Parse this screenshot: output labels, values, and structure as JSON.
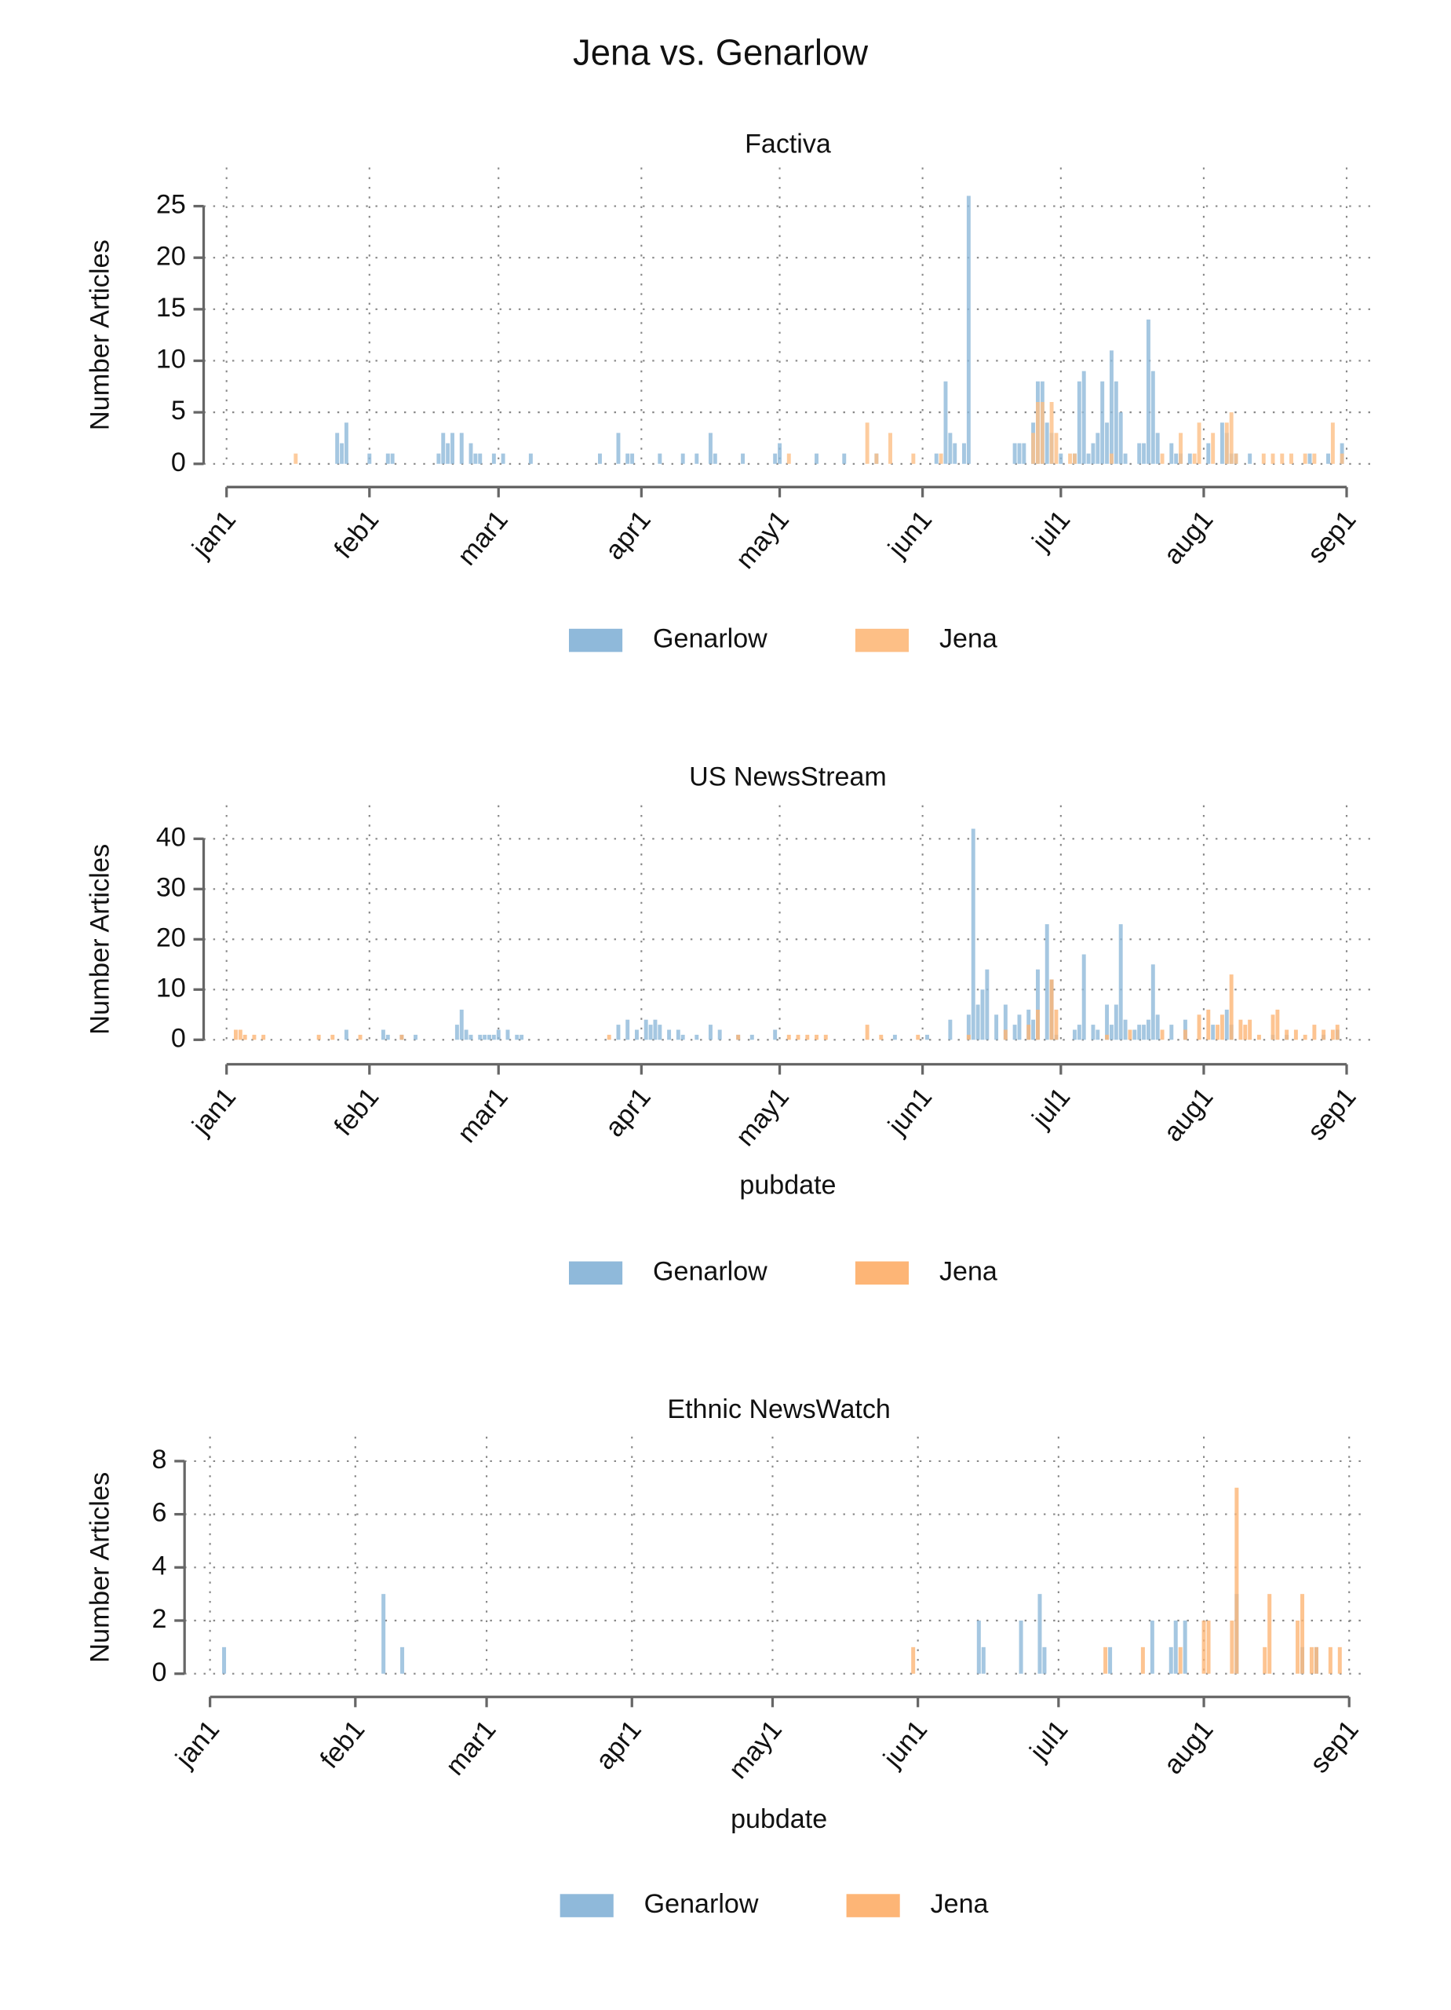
{
  "title": "Jena vs. Genarlow",
  "chart_data": [
    {
      "type": "bar",
      "title": "Factiva",
      "ylabel": "Number Articles",
      "xlim": [
        0,
        243
      ],
      "xticks": [
        {
          "value": 0,
          "label": "jan1"
        },
        {
          "value": 31,
          "label": "feb1"
        },
        {
          "value": 59,
          "label": "mar1"
        },
        {
          "value": 90,
          "label": "apr1"
        },
        {
          "value": 120,
          "label": "may1"
        },
        {
          "value": 151,
          "label": "jun1"
        },
        {
          "value": 181,
          "label": "jul1"
        },
        {
          "value": 212,
          "label": "aug1"
        },
        {
          "value": 243,
          "label": "sep1"
        }
      ],
      "ylim": [
        0,
        25
      ],
      "yticks": [
        0,
        5,
        10,
        15,
        20,
        25
      ],
      "grid": true,
      "series": [
        {
          "name": "Genarlow",
          "color": "#8fb9da",
          "x": [
            24,
            25,
            26,
            31,
            35,
            36,
            46,
            47,
            48,
            49,
            51,
            53,
            54,
            55,
            58,
            60,
            66,
            81,
            85,
            87,
            88,
            94,
            99,
            102,
            105,
            106,
            112,
            119,
            120,
            128,
            134,
            141,
            154,
            156,
            157,
            158,
            160,
            161,
            171,
            172,
            173,
            175,
            176,
            177,
            178,
            179,
            181,
            184,
            185,
            186,
            187,
            188,
            189,
            190,
            191,
            192,
            193,
            194,
            195,
            198,
            199,
            200,
            201,
            202,
            205,
            206,
            207,
            209,
            213,
            216,
            217,
            218,
            219,
            222,
            235,
            239,
            242
          ],
          "values": [
            3,
            2,
            4,
            1,
            1,
            1,
            1,
            3,
            2,
            3,
            3,
            2,
            1,
            1,
            1,
            1,
            1,
            1,
            3,
            1,
            1,
            1,
            1,
            1,
            3,
            1,
            1,
            1,
            2,
            1,
            1,
            1,
            1,
            8,
            3,
            2,
            2,
            26,
            2,
            2,
            2,
            4,
            8,
            8,
            4,
            3,
            1,
            1,
            8,
            9,
            1,
            2,
            3,
            8,
            4,
            11,
            8,
            5,
            1,
            2,
            2,
            14,
            9,
            3,
            2,
            1,
            1,
            1,
            2,
            4,
            3,
            1,
            1,
            1,
            1,
            1,
            2
          ]
        },
        {
          "name": "Jena",
          "color": "#fdbf86",
          "x": [
            15,
            122,
            139,
            141,
            144,
            149,
            155,
            175,
            176,
            177,
            179,
            180,
            183,
            184,
            192,
            203,
            207,
            210,
            211,
            214,
            217,
            218,
            219,
            225,
            227,
            229,
            231,
            234,
            236,
            240,
            242
          ],
          "values": [
            1,
            1,
            4,
            1,
            3,
            1,
            1,
            3,
            6,
            6,
            6,
            3,
            1,
            1,
            1,
            1,
            3,
            1,
            4,
            3,
            4,
            5,
            1,
            1,
            1,
            1,
            1,
            1,
            1,
            4,
            1
          ]
        }
      ]
    },
    {
      "type": "bar",
      "title": "US NewsStream",
      "ylabel": "Number Articles",
      "xlabel": "pubdate",
      "xlim": [
        0,
        243
      ],
      "xticks": [
        {
          "value": 0,
          "label": "jan1"
        },
        {
          "value": 31,
          "label": "feb1"
        },
        {
          "value": 59,
          "label": "mar1"
        },
        {
          "value": 90,
          "label": "apr1"
        },
        {
          "value": 120,
          "label": "may1"
        },
        {
          "value": 151,
          "label": "jun1"
        },
        {
          "value": 181,
          "label": "jul1"
        },
        {
          "value": 212,
          "label": "aug1"
        },
        {
          "value": 243,
          "label": "sep1"
        }
      ],
      "ylim": [
        0,
        40
      ],
      "yticks": [
        0,
        10,
        20,
        30,
        40
      ],
      "grid": true,
      "series": [
        {
          "name": "Genarlow",
          "color": "#8fb9da",
          "x": [
            26,
            34,
            35,
            38,
            41,
            50,
            51,
            52,
            53,
            55,
            56,
            57,
            58,
            59,
            61,
            63,
            64,
            85,
            87,
            89,
            91,
            92,
            93,
            94,
            96,
            98,
            99,
            102,
            105,
            107,
            111,
            114,
            119,
            145,
            152,
            157,
            161,
            162,
            163,
            164,
            165,
            167,
            169,
            171,
            172,
            174,
            175,
            176,
            178,
            179,
            180,
            184,
            185,
            186,
            188,
            189,
            191,
            192,
            193,
            194,
            195,
            197,
            198,
            199,
            200,
            201,
            202,
            205,
            208,
            214,
            217,
            218,
            227,
            230,
            238,
            241
          ],
          "values": [
            2,
            2,
            1,
            1,
            1,
            3,
            6,
            2,
            1,
            1,
            1,
            1,
            1,
            2,
            2,
            1,
            1,
            3,
            4,
            2,
            4,
            3,
            4,
            3,
            2,
            2,
            1,
            1,
            3,
            2,
            1,
            1,
            2,
            1,
            1,
            4,
            5,
            42,
            7,
            10,
            14,
            5,
            7,
            3,
            5,
            6,
            4,
            14,
            23,
            12,
            1,
            2,
            3,
            17,
            3,
            2,
            7,
            3,
            7,
            23,
            4,
            2,
            3,
            3,
            4,
            15,
            5,
            3,
            4,
            3,
            6,
            3,
            1,
            1,
            1,
            2
          ]
        },
        {
          "name": "Jena",
          "color": "#fdb576",
          "x": [
            2,
            3,
            4,
            6,
            8,
            20,
            23,
            29,
            38,
            83,
            111,
            122,
            124,
            126,
            128,
            130,
            139,
            142,
            150,
            161,
            169,
            174,
            176,
            179,
            180,
            191,
            196,
            203,
            208,
            211,
            213,
            215,
            216,
            218,
            220,
            221,
            222,
            224,
            227,
            228,
            230,
            232,
            234,
            236,
            238,
            240,
            241
          ],
          "values": [
            2,
            2,
            1,
            1,
            1,
            1,
            1,
            1,
            1,
            1,
            1,
            1,
            1,
            1,
            1,
            1,
            3,
            1,
            1,
            1,
            2,
            3,
            6,
            12,
            6,
            1,
            2,
            2,
            2,
            5,
            6,
            3,
            5,
            13,
            4,
            3,
            4,
            1,
            5,
            6,
            2,
            2,
            1,
            3,
            2,
            2,
            3
          ]
        }
      ]
    },
    {
      "type": "bar",
      "title": "Ethnic NewsWatch",
      "ylabel": "Number Articles",
      "xlabel": "pubdate",
      "xlim": [
        0,
        243
      ],
      "xticks": [
        {
          "value": 0,
          "label": "jan1"
        },
        {
          "value": 31,
          "label": "feb1"
        },
        {
          "value": 59,
          "label": "mar1"
        },
        {
          "value": 90,
          "label": "apr1"
        },
        {
          "value": 120,
          "label": "may1"
        },
        {
          "value": 151,
          "label": "jun1"
        },
        {
          "value": 181,
          "label": "jul1"
        },
        {
          "value": 212,
          "label": "aug1"
        },
        {
          "value": 243,
          "label": "sep1"
        }
      ],
      "ylim": [
        0,
        8
      ],
      "yticks": [
        0,
        2,
        4,
        6,
        8
      ],
      "grid": true,
      "series": [
        {
          "name": "Genarlow",
          "color": "#8fb9da",
          "x": [
            3,
            37,
            41,
            164,
            165,
            173,
            177,
            178,
            192,
            201,
            205,
            206,
            208,
            219,
            233,
            236
          ],
          "values": [
            1,
            3,
            1,
            2,
            1,
            2,
            3,
            1,
            1,
            2,
            1,
            2,
            2,
            3,
            1,
            1
          ]
        },
        {
          "name": "Jena",
          "color": "#fdb576",
          "x": [
            150,
            191,
            199,
            207,
            212,
            213,
            218,
            219,
            225,
            226,
            232,
            233,
            235,
            236,
            239,
            241
          ],
          "values": [
            1,
            1,
            1,
            1,
            2,
            2,
            2,
            7,
            1,
            3,
            2,
            3,
            1,
            1,
            1,
            1
          ]
        }
      ]
    }
  ]
}
